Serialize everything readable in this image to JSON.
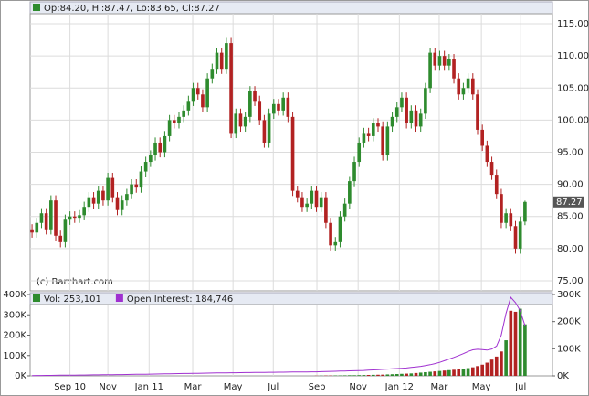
{
  "chart_data": [
    {
      "type": "candlestick",
      "legend": "Op:84.20, Hi:87.47, Lo:83.65, Cl:87.27",
      "annotation": "(c) Barchart.com",
      "up_color": "#2e8b2e",
      "down_color": "#b22222",
      "xlim": [
        -0.4,
        109.8
      ],
      "ylim": [
        73.43,
        116.57
      ],
      "yticks": [
        {
          "value": 75,
          "label": "75.00"
        },
        {
          "value": 80,
          "label": "80.00"
        },
        {
          "value": 85,
          "label": "85.00"
        },
        {
          "value": 90,
          "label": "90.00"
        },
        {
          "value": 95,
          "label": "95.00"
        },
        {
          "value": 100,
          "label": "100.00"
        },
        {
          "value": 105,
          "label": "105.00"
        },
        {
          "value": 110,
          "label": "110.00"
        },
        {
          "value": 115,
          "label": "115.00"
        }
      ],
      "grid": true,
      "open": [
        83.0,
        82.5,
        84.0,
        85.5,
        83.0,
        87.5,
        82.0,
        81.0,
        84.5,
        85.0,
        84.8,
        85.2,
        86.5,
        88.0,
        87.0,
        89.0,
        87.5,
        91.0,
        88.0,
        86.0,
        87.5,
        88.5,
        90.0,
        89.5,
        92.0,
        93.5,
        94.5,
        96.5,
        95.0,
        97.5,
        100.0,
        99.5,
        100.5,
        101.5,
        103.0,
        105.0,
        104.0,
        102.0,
        106.5,
        108.0,
        110.5,
        108.0,
        112.0,
        98.0,
        101.0,
        99.0,
        100.5,
        104.5,
        103.0,
        100.0,
        96.5,
        101.0,
        102.5,
        101.5,
        103.5,
        100.5,
        89.0,
        88.0,
        86.5,
        87.0,
        89.0,
        86.5,
        88.0,
        84.0,
        80.5,
        81.0,
        85.0,
        87.0,
        90.5,
        93.5,
        96.5,
        98.0,
        97.5,
        99.5,
        99.0,
        94.5,
        99.0,
        100.5,
        102.0,
        103.5,
        99.5,
        101.5,
        99.0,
        101.0,
        105.0,
        110.5,
        108.5,
        110.0,
        108.5,
        109.5,
        106.5,
        104.0,
        105.0,
        106.5,
        104.0,
        98.5,
        96.0,
        93.5,
        91.5,
        88.5,
        84.0,
        85.5,
        83.5,
        80.0,
        84.2
      ],
      "high": [
        83.8,
        84.8,
        86.3,
        86.3,
        88.3,
        88.3,
        82.8,
        85.3,
        85.8,
        85.8,
        86.0,
        87.3,
        88.8,
        88.8,
        89.8,
        89.8,
        91.8,
        91.8,
        88.8,
        88.3,
        89.3,
        90.8,
        90.8,
        92.8,
        94.3,
        95.3,
        97.3,
        97.3,
        98.3,
        100.8,
        100.8,
        101.3,
        102.3,
        103.8,
        105.8,
        105.8,
        104.8,
        107.3,
        108.8,
        111.3,
        111.3,
        112.8,
        112.8,
        101.8,
        101.8,
        101.3,
        105.3,
        105.3,
        103.8,
        100.8,
        101.8,
        103.3,
        103.3,
        104.3,
        104.3,
        101.3,
        89.8,
        88.8,
        87.8,
        89.8,
        89.8,
        88.8,
        88.8,
        84.8,
        81.8,
        85.8,
        87.8,
        91.3,
        94.3,
        97.3,
        98.8,
        98.8,
        100.3,
        100.3,
        99.8,
        99.8,
        101.3,
        102.8,
        104.3,
        104.3,
        102.3,
        102.3,
        101.8,
        105.8,
        111.3,
        111.3,
        110.8,
        110.8,
        110.3,
        110.3,
        107.3,
        105.8,
        107.3,
        107.3,
        104.8,
        99.3,
        96.8,
        94.3,
        92.3,
        89.3,
        86.3,
        86.3,
        84.3,
        85.0,
        87.47
      ],
      "low": [
        81.7,
        81.7,
        83.2,
        82.2,
        82.2,
        81.2,
        80.2,
        80.2,
        83.7,
        84.0,
        84.0,
        84.4,
        85.7,
        86.2,
        86.2,
        86.7,
        86.7,
        87.2,
        85.2,
        85.2,
        86.7,
        87.7,
        88.7,
        88.7,
        91.2,
        92.7,
        93.7,
        94.2,
        94.2,
        96.7,
        98.7,
        98.7,
        99.7,
        100.7,
        102.2,
        103.2,
        101.2,
        101.2,
        105.7,
        107.2,
        107.2,
        107.2,
        97.2,
        97.2,
        98.2,
        98.2,
        99.7,
        102.2,
        99.2,
        95.7,
        95.7,
        100.2,
        100.7,
        100.7,
        99.7,
        88.2,
        87.2,
        85.7,
        85.7,
        86.2,
        85.7,
        85.7,
        83.2,
        79.7,
        79.7,
        80.2,
        84.2,
        86.2,
        89.7,
        92.7,
        95.7,
        96.7,
        96.7,
        98.2,
        93.7,
        93.7,
        98.2,
        99.7,
        101.2,
        98.7,
        98.7,
        98.2,
        98.2,
        100.2,
        104.2,
        107.7,
        107.7,
        107.7,
        107.7,
        105.7,
        103.2,
        103.2,
        104.2,
        103.2,
        97.7,
        95.2,
        92.7,
        90.7,
        87.7,
        83.2,
        83.2,
        82.7,
        79.2,
        79.2,
        83.65
      ],
      "close": [
        82.5,
        84.0,
        85.5,
        83.0,
        87.5,
        82.0,
        81.0,
        84.5,
        85.0,
        84.8,
        85.2,
        86.5,
        88.0,
        87.0,
        89.0,
        87.5,
        91.0,
        88.0,
        86.0,
        87.5,
        88.5,
        90.0,
        89.5,
        92.0,
        93.5,
        94.5,
        96.5,
        95.0,
        97.5,
        100.0,
        99.5,
        100.5,
        101.5,
        103.0,
        105.0,
        104.0,
        102.0,
        106.5,
        108.0,
        110.5,
        108.0,
        112.0,
        98.0,
        101.0,
        99.0,
        100.5,
        104.5,
        103.0,
        100.0,
        96.5,
        101.0,
        102.5,
        101.5,
        103.5,
        100.5,
        89.0,
        88.0,
        86.5,
        87.0,
        89.0,
        86.5,
        88.0,
        84.0,
        80.5,
        81.0,
        85.0,
        87.0,
        90.5,
        93.5,
        96.5,
        98.0,
        97.5,
        99.5,
        99.0,
        94.5,
        99.0,
        100.5,
        102.0,
        103.5,
        99.5,
        101.5,
        99.0,
        101.0,
        105.0,
        110.5,
        108.5,
        110.0,
        108.5,
        109.5,
        106.5,
        104.0,
        105.0,
        106.5,
        104.0,
        98.5,
        96.0,
        93.5,
        91.5,
        88.5,
        84.0,
        85.5,
        83.5,
        80.0,
        84.2,
        87.27
      ]
    },
    {
      "type": "bar",
      "xlim": [
        -0.4,
        109.8
      ],
      "xticks": [
        {
          "value": 8,
          "label": "Sep 10"
        },
        {
          "value": 16,
          "label": "Nov"
        },
        {
          "value": 24.7,
          "label": "Jan 11"
        },
        {
          "value": 33.9,
          "label": "Mar"
        },
        {
          "value": 42.4,
          "label": "May"
        },
        {
          "value": 50.9,
          "label": "Jul"
        },
        {
          "value": 60.1,
          "label": "Sep"
        },
        {
          "value": 68.8,
          "label": "Nov"
        },
        {
          "value": 77.5,
          "label": "Jan 12"
        },
        {
          "value": 85.9,
          "label": "Mar"
        },
        {
          "value": 94.8,
          "label": "May"
        },
        {
          "value": 103.1,
          "label": "Jul"
        }
      ],
      "ylim": [
        0,
        400000
      ],
      "yticks": [
        {
          "value": 0,
          "label": "0K"
        },
        {
          "value": 100000,
          "label": "100K"
        },
        {
          "value": 200000,
          "label": "200K"
        },
        {
          "value": 300000,
          "label": "300K"
        },
        {
          "value": 400000,
          "label": "400K"
        }
      ],
      "y2lim": [
        0,
        300000
      ],
      "y2ticks": [
        {
          "value": 0,
          "label": "0K"
        },
        {
          "value": 100000,
          "label": "100K"
        },
        {
          "value": 200000,
          "label": "200K"
        },
        {
          "value": 300000,
          "label": "300K"
        }
      ],
      "series": [
        {
          "name": "Vol: 253,101",
          "color": "#2e8b2e",
          "values": [
            0,
            0,
            0,
            0,
            0,
            0,
            0,
            0,
            0,
            0,
            0,
            0,
            0,
            0,
            0,
            0,
            0,
            0,
            0,
            0,
            0,
            0,
            0,
            0,
            0,
            0,
            0,
            0,
            0,
            0,
            0,
            0,
            0,
            0,
            0,
            0,
            0,
            0,
            0,
            0,
            0,
            0,
            0,
            0,
            0,
            0,
            0,
            0,
            0,
            0,
            0,
            0,
            0,
            0,
            0,
            0,
            0,
            0,
            0,
            0,
            1000,
            1000,
            1500,
            1500,
            2000,
            2000,
            2500,
            3000,
            3000,
            3500,
            4000,
            4500,
            5000,
            5500,
            6000,
            7000,
            8000,
            9000,
            10000,
            11000,
            12000,
            14000,
            16000,
            18000,
            20000,
            22000,
            24000,
            26000,
            28000,
            30000,
            32000,
            35000,
            38000,
            42000,
            48000,
            55000,
            65000,
            80000,
            95000,
            120000,
            175000,
            320000,
            315000,
            330000,
            253101
          ]
        },
        {
          "name": "Open Interest: 184,746",
          "color": "#a030d0",
          "axis": "y2",
          "values": [
            1000,
            1200,
            1400,
            1600,
            1800,
            2000,
            2200,
            2400,
            2600,
            2800,
            3000,
            3200,
            3400,
            3600,
            3800,
            4000,
            4200,
            4400,
            4600,
            4800,
            5000,
            5300,
            5600,
            5900,
            6200,
            6500,
            6800,
            7100,
            7400,
            7700,
            8000,
            8300,
            8600,
            8900,
            9200,
            9500,
            9800,
            10100,
            10400,
            10700,
            11000,
            11200,
            11400,
            11600,
            11800,
            12000,
            12200,
            12400,
            12600,
            12800,
            13000,
            13200,
            13400,
            13600,
            13800,
            14000,
            14200,
            14400,
            14600,
            14800,
            15000,
            15500,
            16000,
            16500,
            17000,
            17500,
            18000,
            18500,
            19000,
            19500,
            20000,
            21000,
            22000,
            23000,
            24000,
            25000,
            26000,
            27000,
            28000,
            29000,
            31000,
            33000,
            35000,
            38000,
            41000,
            45000,
            50000,
            56000,
            62000,
            68000,
            75000,
            82000,
            90000,
            96000,
            98000,
            97000,
            95000,
            99000,
            110000,
            150000,
            230000,
            290000,
            270000,
            240000,
            184746
          ]
        }
      ]
    }
  ]
}
